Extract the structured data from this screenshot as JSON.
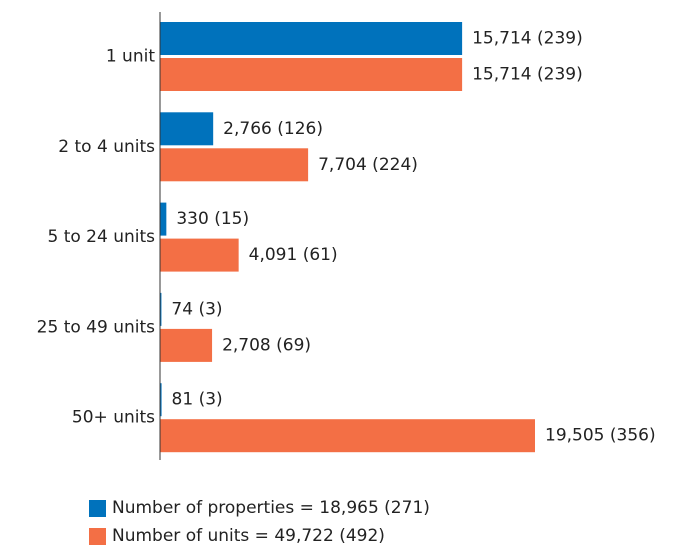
{
  "chart_data": {
    "type": "bar",
    "orientation": "horizontal",
    "categories": [
      "1 unit",
      "2 to 4 units",
      "5 to 24 units",
      "25 to 49 units",
      "50+ units"
    ],
    "series": [
      {
        "name": "Number of properties = 18,965 (271)",
        "color": "#0072bc",
        "values": [
          15714,
          2766,
          330,
          74,
          81
        ],
        "value_labels": [
          "15,714 (239)",
          "2,766 (126)",
          "330 (15)",
          "74 (3)",
          "81 (3)"
        ]
      },
      {
        "name": "Number of units = 49,722 (492)",
        "color": "#f36f45",
        "values": [
          15714,
          7704,
          4091,
          2708,
          19505
        ],
        "value_labels": [
          "15,714 (239)",
          "7,704 (224)",
          "4,091 (61)",
          "2,708 (69)",
          "19,505 (356)"
        ]
      }
    ]
  }
}
